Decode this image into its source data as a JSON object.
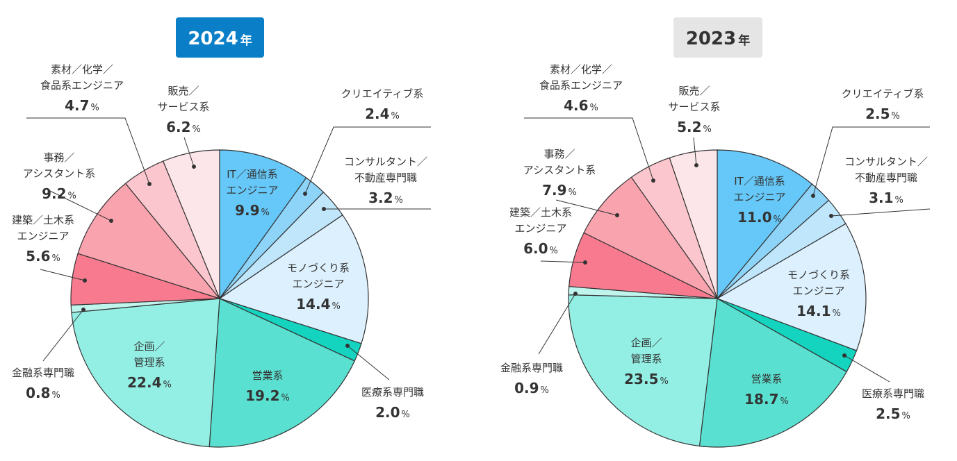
{
  "chart_data": [
    {
      "type": "pie",
      "title": "2024",
      "title_unit": "年",
      "title_bg": "#0a7fc8",
      "title_color": "#ffffff",
      "unit": "%",
      "start": "top",
      "direction": "clockwise",
      "slices": [
        {
          "label": [
            "IT／通信系",
            "エンジニア"
          ],
          "value": 9.9,
          "color": "#66c8f8"
        },
        {
          "label": [
            "クリエイティブ系"
          ],
          "value": 2.4,
          "color": "#8dd4f8"
        },
        {
          "label": [
            "コンサルタント／",
            "不動産専門職"
          ],
          "value": 3.2,
          "color": "#bfe6fb"
        },
        {
          "label": [
            "モノづくり系",
            "エンジニア"
          ],
          "value": 14.4,
          "color": "#dcf0fd"
        },
        {
          "label": [
            "医療系専門職"
          ],
          "value": 2.0,
          "color": "#14d3bf"
        },
        {
          "label": [
            "営業系"
          ],
          "value": 19.2,
          "color": "#5ae0d0"
        },
        {
          "label": [
            "企画／",
            "管理系"
          ],
          "value": 22.4,
          "color": "#93efe4"
        },
        {
          "label": [
            "金融系専門職"
          ],
          "value": 0.8,
          "color": "#c0f5ee"
        },
        {
          "label": [
            "建築／土木系",
            "エンジニア"
          ],
          "value": 5.6,
          "color": "#f77a8e"
        },
        {
          "label": [
            "事務／",
            "アシスタント系"
          ],
          "value": 9.2,
          "color": "#f9a3ae"
        },
        {
          "label": [
            "素材／化学／",
            "食品系エンジニア"
          ],
          "value": 4.7,
          "color": "#fbc6cd"
        },
        {
          "label": [
            "販売／",
            "サービス系"
          ],
          "value": 6.2,
          "color": "#fde6ea"
        }
      ]
    },
    {
      "type": "pie",
      "title": "2023",
      "title_unit": "年",
      "title_bg": "#e5e5e5",
      "title_color": "#333333",
      "unit": "%",
      "start": "top",
      "direction": "clockwise",
      "slices": [
        {
          "label": [
            "IT／通信系",
            "エンジニア"
          ],
          "value": 11.0,
          "color": "#66c8f8"
        },
        {
          "label": [
            "クリエイティブ系"
          ],
          "value": 2.5,
          "color": "#8dd4f8"
        },
        {
          "label": [
            "コンサルタント／",
            "不動産専門職"
          ],
          "value": 3.1,
          "color": "#bfe6fb"
        },
        {
          "label": [
            "モノづくり系",
            "エンジニア"
          ],
          "value": 14.1,
          "color": "#dcf0fd"
        },
        {
          "label": [
            "医療系専門職"
          ],
          "value": 2.5,
          "color": "#14d3bf"
        },
        {
          "label": [
            "営業系"
          ],
          "value": 18.7,
          "color": "#5ae0d0"
        },
        {
          "label": [
            "企画／",
            "管理系"
          ],
          "value": 23.5,
          "color": "#93efe4"
        },
        {
          "label": [
            "金融系専門職"
          ],
          "value": 0.9,
          "color": "#c0f5ee"
        },
        {
          "label": [
            "建築／土木系",
            "エンジニア"
          ],
          "value": 6.0,
          "color": "#f77a8e"
        },
        {
          "label": [
            "事務／",
            "アシスタント系"
          ],
          "value": 7.9,
          "color": "#f9a3ae"
        },
        {
          "label": [
            "素材／化学／",
            "食品系エンジニア"
          ],
          "value": 4.6,
          "color": "#fbc6cd"
        },
        {
          "label": [
            "販売／",
            "サービス系"
          ],
          "value": 5.2,
          "color": "#fde6ea"
        }
      ]
    }
  ]
}
